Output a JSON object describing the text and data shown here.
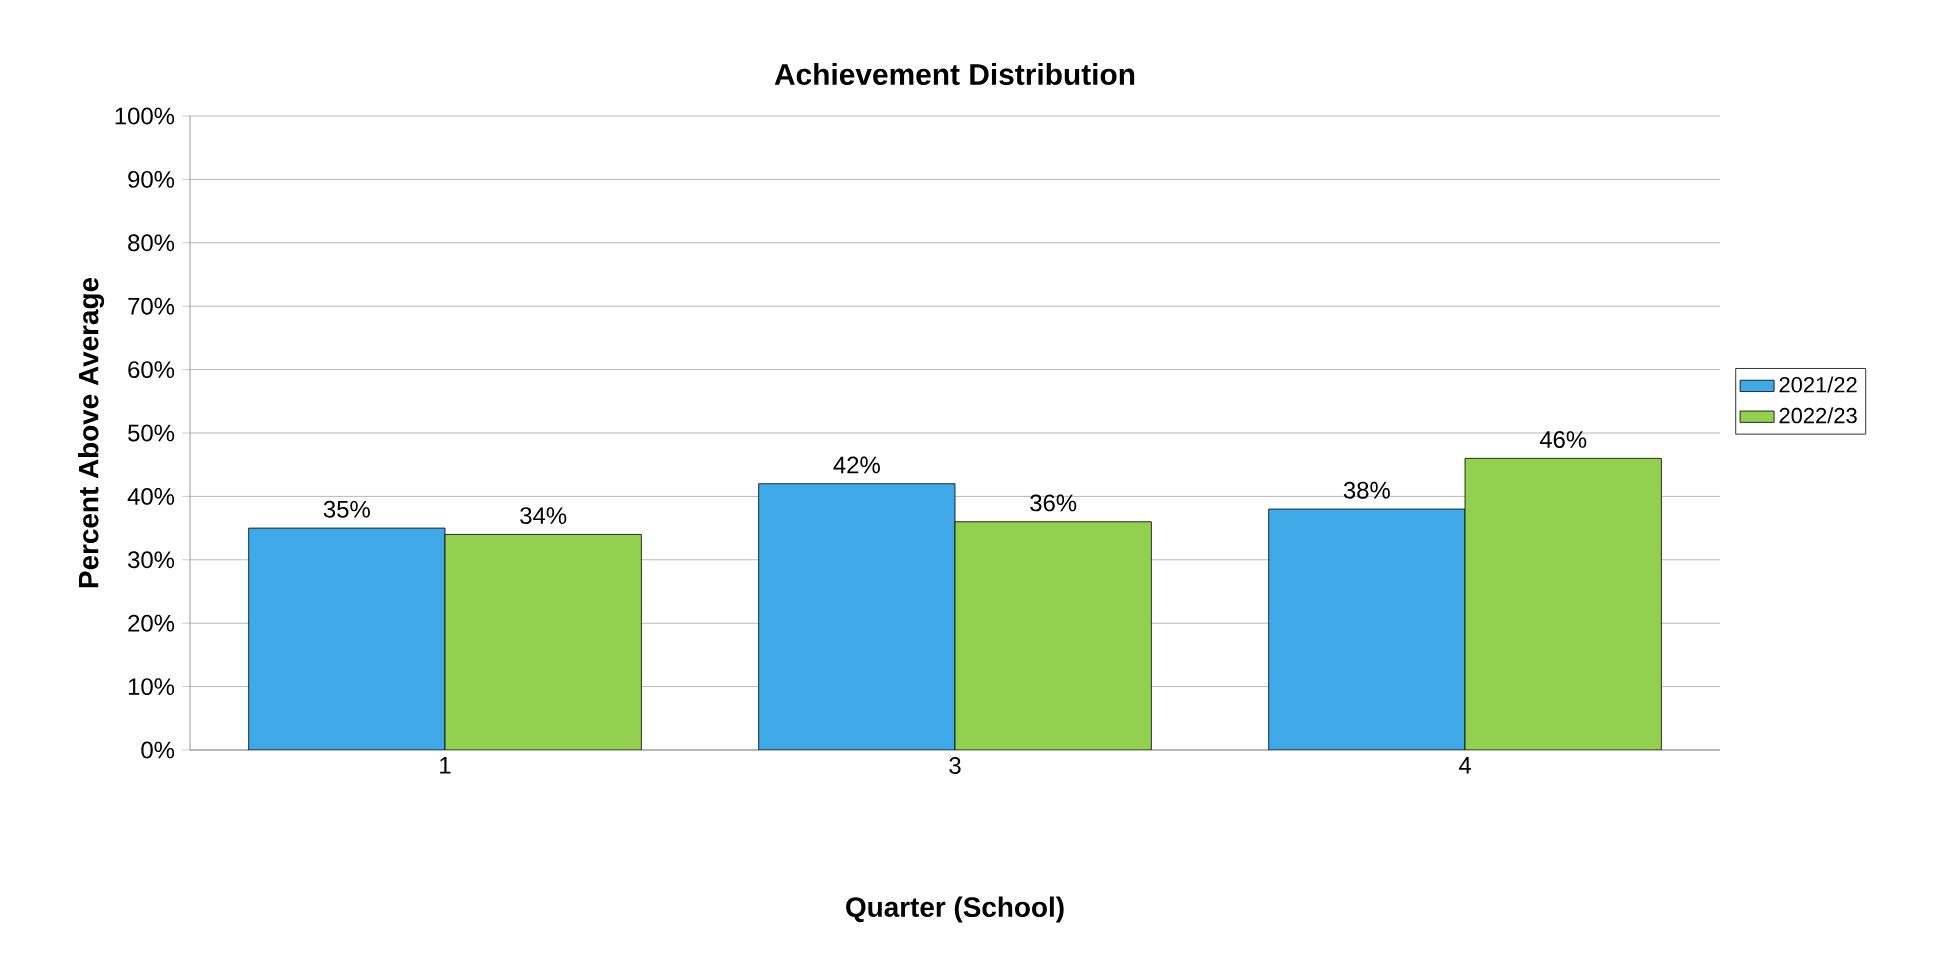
{
  "chart_data": {
    "type": "bar",
    "title": "Achievement Distribution",
    "xlabel": "Quarter (School)",
    "ylabel": "Percent Above Average",
    "categories": [
      "1",
      "3",
      "4"
    ],
    "series": [
      {
        "name": "2021/22",
        "color": "#3fa9e8",
        "values": [
          35,
          42,
          38
        ],
        "value_labels": [
          "35%",
          "42%",
          "38%"
        ]
      },
      {
        "name": "2022/23",
        "color": "#92d050",
        "values": [
          34,
          36,
          46
        ],
        "value_labels": [
          "34%",
          "36%",
          "46%"
        ]
      }
    ],
    "ylim": [
      0,
      100
    ],
    "yticks": [
      {
        "value": 0,
        "label": "0%"
      },
      {
        "value": 10,
        "label": "10%"
      },
      {
        "value": 20,
        "label": "20%"
      },
      {
        "value": 30,
        "label": "30%"
      },
      {
        "value": 40,
        "label": "40%"
      },
      {
        "value": 50,
        "label": "50%"
      },
      {
        "value": 60,
        "label": "60%"
      },
      {
        "value": 70,
        "label": "70%"
      },
      {
        "value": 80,
        "label": "80%"
      },
      {
        "value": 90,
        "label": "90%"
      },
      {
        "value": 100,
        "label": "100%"
      }
    ],
    "grid": "y",
    "legend": "right"
  }
}
